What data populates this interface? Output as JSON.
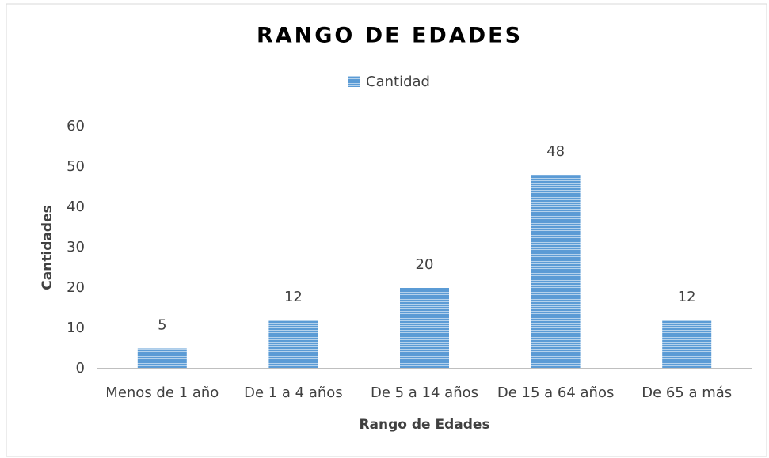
{
  "chart_data": {
    "type": "bar",
    "title": "RANGO DE EDADES",
    "x_label": "Rango de Edades",
    "y_label": "Cantidades",
    "categories": [
      "Menos de 1 año",
      "De 1 a 4 años",
      "De 5 a 14 años",
      "De 15 a 64 años",
      "De 65 a más"
    ],
    "series": [
      {
        "name": "Cantidad",
        "color": "#5b9bd5",
        "values": [
          5,
          12,
          20,
          48,
          12
        ]
      }
    ],
    "ylim": [
      0,
      60
    ],
    "yticks": [
      0,
      10,
      20,
      30,
      40,
      50,
      60
    ],
    "grid": false,
    "legend": "top"
  }
}
